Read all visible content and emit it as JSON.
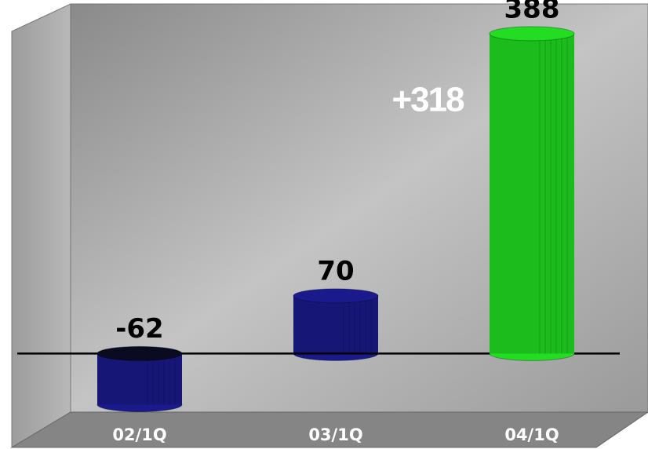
{
  "chart_data": {
    "type": "bar",
    "categories": [
      "02/1Q",
      "03/1Q",
      "04/1Q"
    ],
    "values": [
      -62,
      70,
      388
    ],
    "colors": [
      "#1a1a8c",
      "#1a1a8c",
      "#22dd22"
    ],
    "ylim": [
      -71,
      424
    ],
    "annotations": [
      "+318"
    ]
  }
}
